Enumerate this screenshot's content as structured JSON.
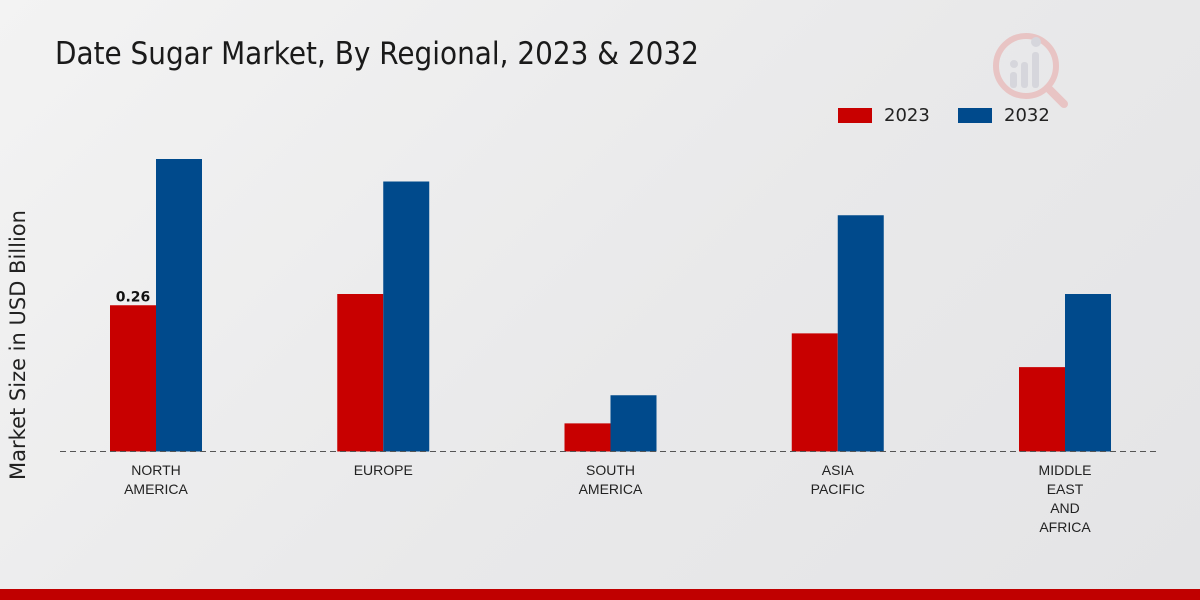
{
  "chart_data": {
    "type": "bar",
    "title": "Date Sugar Market, By Regional, 2023 & 2032",
    "xlabel": "",
    "ylabel": "Market Size in USD Billion",
    "ylim": [
      0,
      0.6
    ],
    "categories": [
      "NORTH\nAMERICA",
      "EUROPE",
      "SOUTH\nAMERICA",
      "ASIA\nPACIFIC",
      "MIDDLE\nEAST\nAND\nAFRICA"
    ],
    "series": [
      {
        "name": "2023",
        "color": "#c80000",
        "values": [
          0.26,
          0.28,
          0.05,
          0.21,
          0.15
        ]
      },
      {
        "name": "2032",
        "color": "#004a8c",
        "values": [
          0.52,
          0.48,
          0.1,
          0.42,
          0.28
        ]
      }
    ],
    "data_labels": [
      {
        "series": 0,
        "index": 0,
        "text": "0.26"
      }
    ],
    "legend_position": "top-right",
    "grid": false
  }
}
